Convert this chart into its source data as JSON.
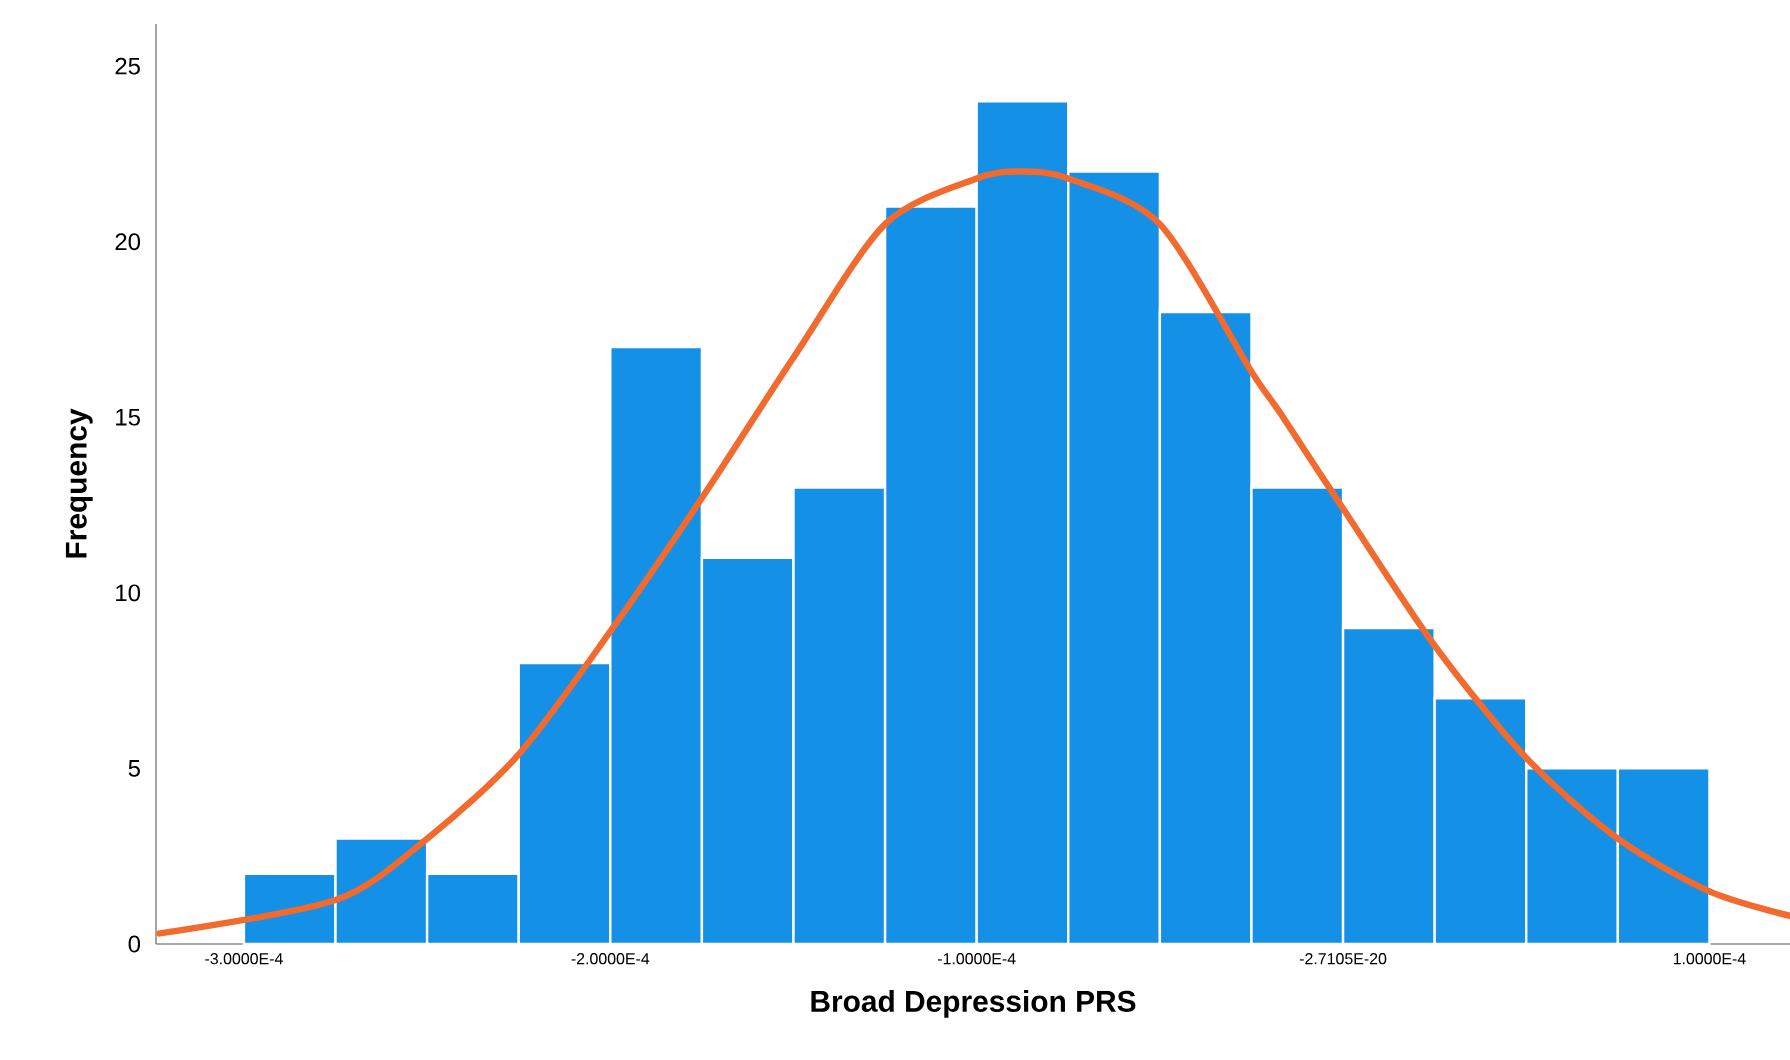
{
  "chart_data": {
    "type": "histogram",
    "xlabel": "Broad Depression PRS",
    "ylabel": "Frequency",
    "bins": [
      -0.0003,
      -0.000275,
      -0.00025,
      -0.000225,
      -0.0002,
      -0.000175,
      -0.00015,
      -0.000125,
      -0.0001,
      -7.5e-05,
      -5e-05,
      -2.5e-05,
      0,
      2.5e-05,
      5e-05,
      7.5e-05,
      0.0001
    ],
    "series": [
      {
        "color": "#1490e6",
        "values": [
          2,
          3,
          2,
          8,
          17,
          11,
          13,
          21,
          24,
          22,
          18,
          13,
          9,
          7,
          5,
          5
        ]
      },
      {
        "type": "line",
        "color": "#f26a2e",
        "x": [
          -0.000323,
          -0.000275,
          -0.00025,
          -0.000225,
          -0.0002,
          -0.000175,
          -0.00015,
          -0.000125,
          -0.0001,
          -8.8e-05,
          -7.5e-05,
          -5e-05,
          -2.5e-05,
          -1.7e-05,
          0,
          2.5e-05,
          5e-05,
          7.5e-05,
          0.0001,
          0.000122
        ],
        "values": [
          0.3,
          1.25,
          3.0,
          5.4,
          8.9,
          12.7,
          16.7,
          20.5,
          21.8,
          22.0,
          21.8,
          20.5,
          16.3,
          15.1,
          12.4,
          8.5,
          5.3,
          3.0,
          1.5,
          0.8
        ]
      }
    ],
    "xlim": [
      -0.000324,
      0.000122
    ],
    "ylim": [
      0,
      26.2
    ],
    "xticks": [
      {
        "value": -0.0003,
        "label": "-3.0000E-4"
      },
      {
        "value": -0.0002,
        "label": "-2.0000E-4"
      },
      {
        "value": -0.0001,
        "label": "-1.0000E-4"
      },
      {
        "value": -2.7105e-20,
        "label": "-2.7105E-20"
      },
      {
        "value": 0.0001,
        "label": "1.0000E-4"
      }
    ],
    "yticks": [
      0,
      5,
      10,
      15,
      20,
      25
    ],
    "grid": false,
    "marker": "none",
    "line_style": "solid"
  }
}
